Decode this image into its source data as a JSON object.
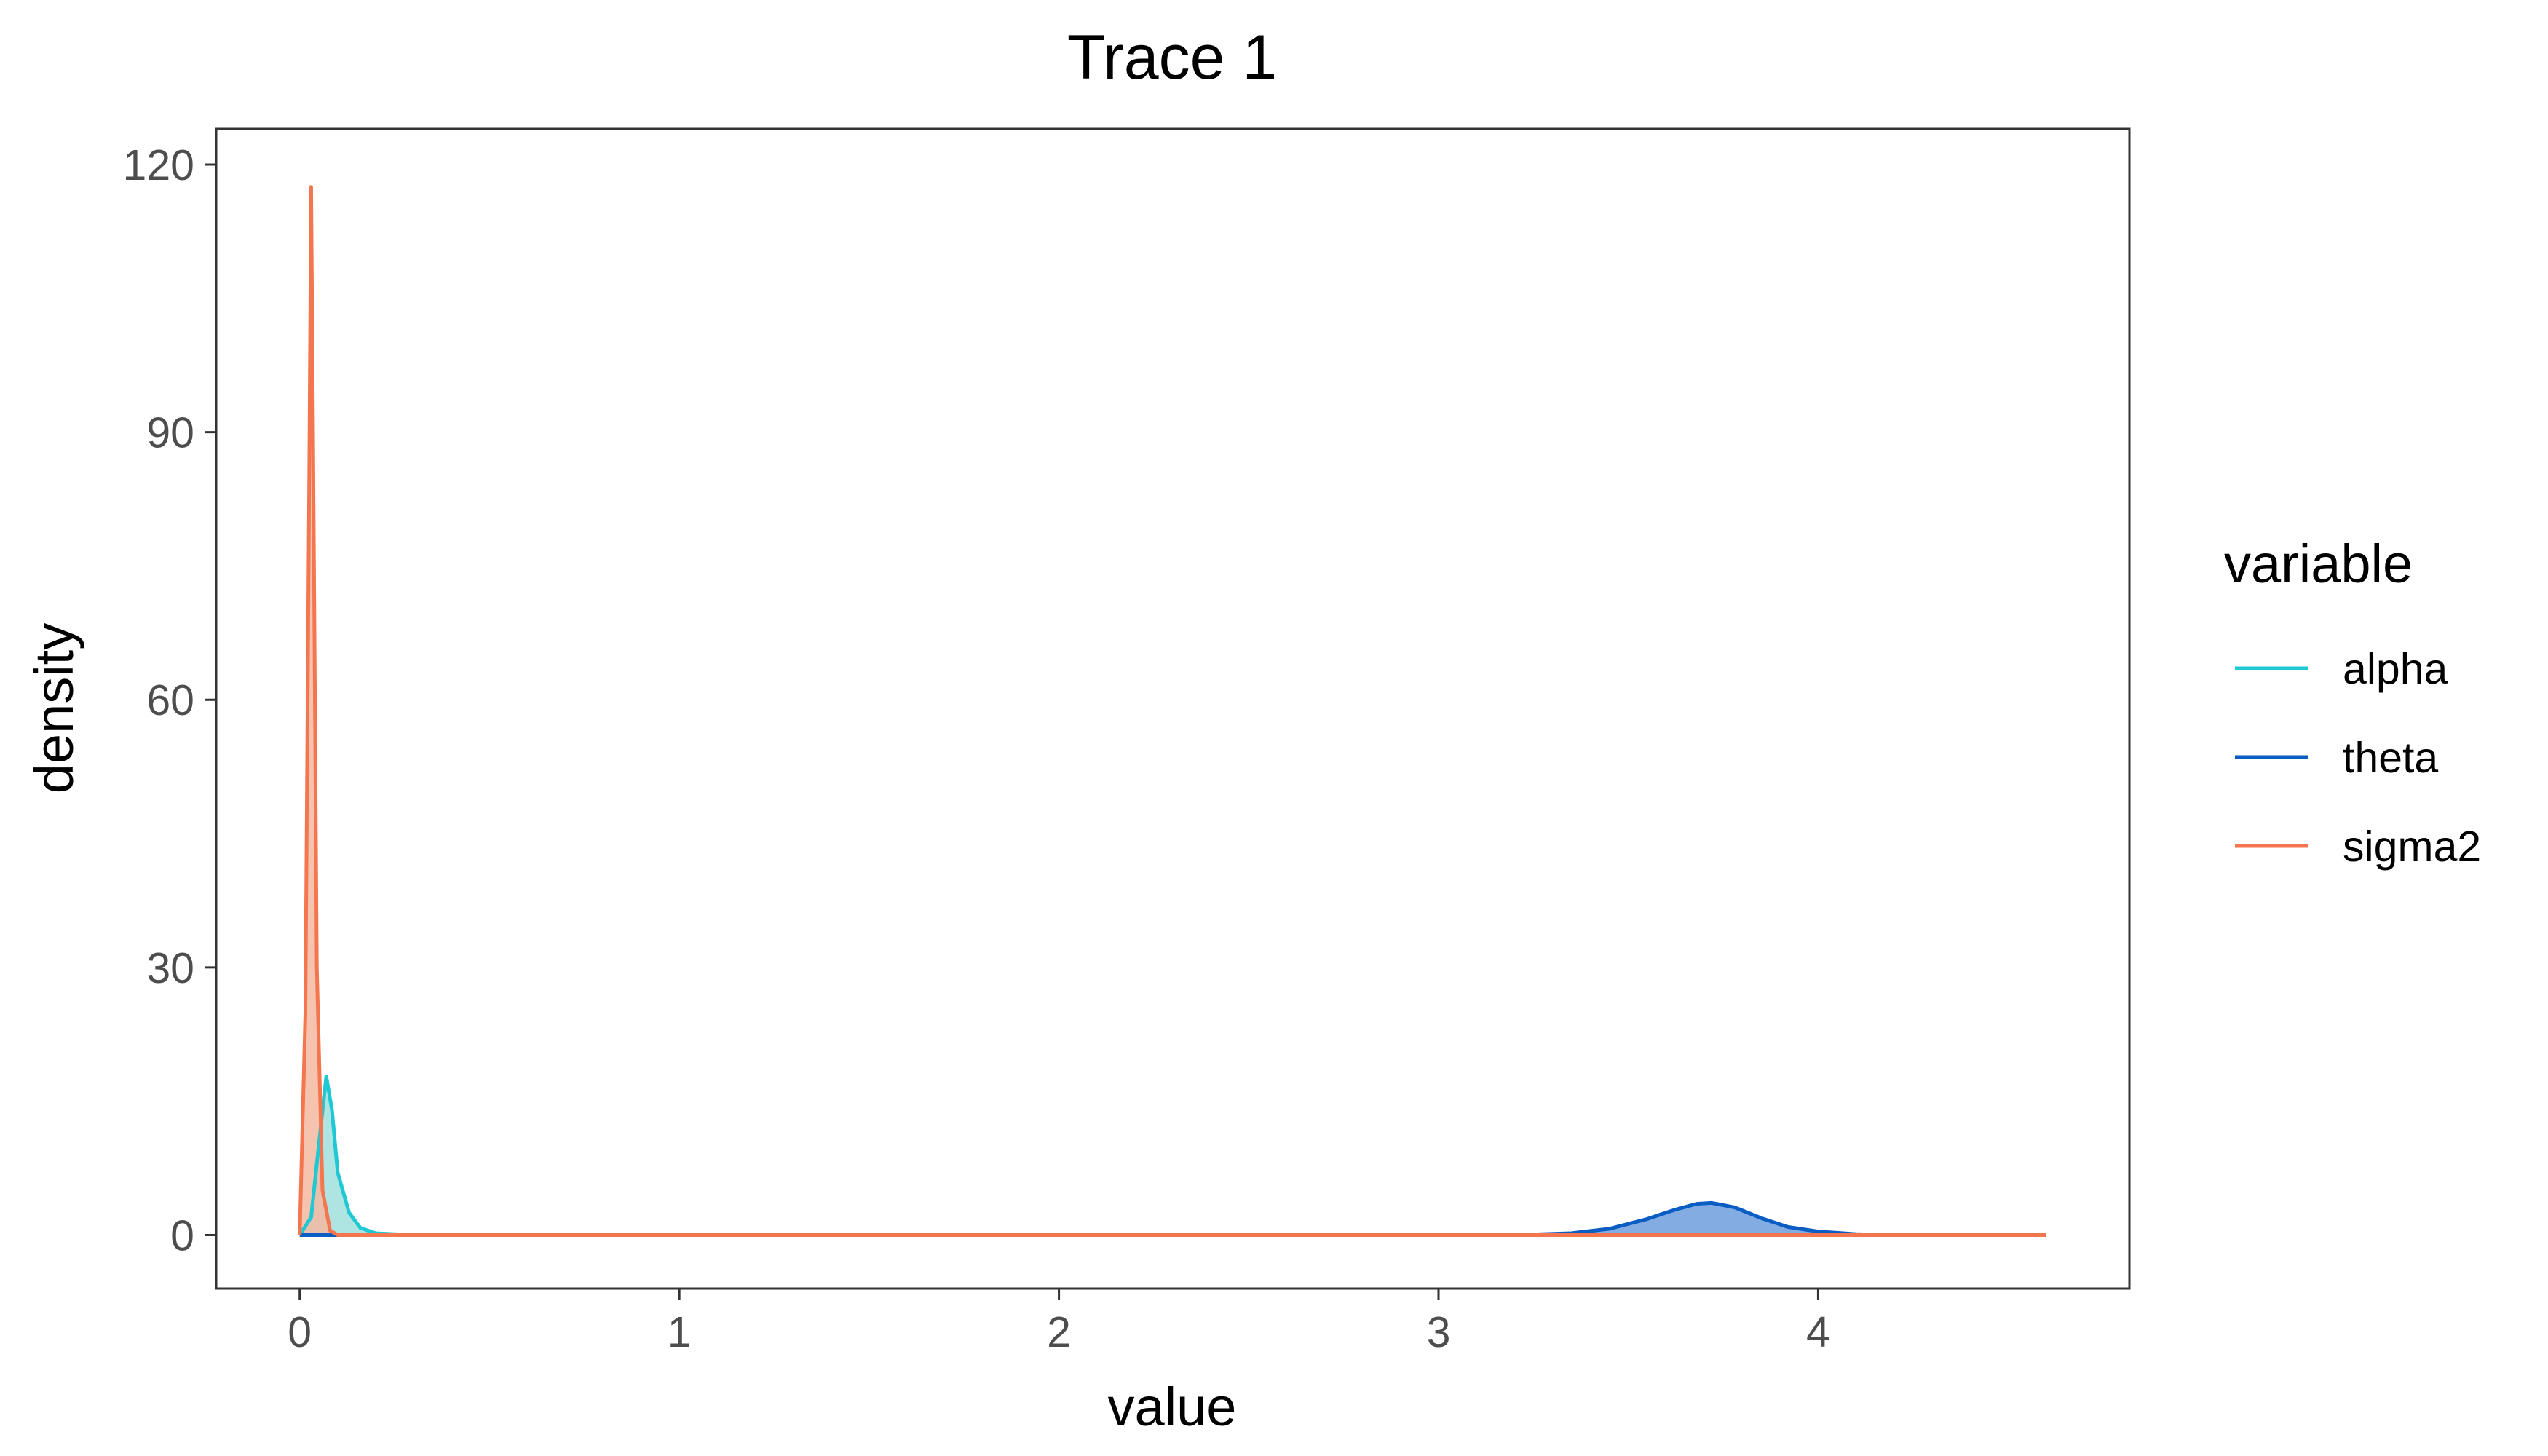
{
  "chart_data": {
    "type": "area",
    "title": "Trace 1",
    "xlabel": "value",
    "ylabel": "density",
    "xlim": [
      -0.22,
      4.82
    ],
    "ylim": [
      -6,
      124
    ],
    "xticks": [
      0,
      1,
      2,
      3,
      4
    ],
    "yticks": [
      0,
      30,
      60,
      90,
      120
    ],
    "grid": false,
    "legend": {
      "title": "variable",
      "position": "right"
    },
    "series": [
      {
        "name": "alpha",
        "color": "#1fc8d2",
        "fill_color": "#a0dfdd",
        "x": [
          0.0,
          0.03,
          0.05,
          0.07,
          0.085,
          0.1,
          0.13,
          0.16,
          0.2,
          0.3,
          4.6
        ],
        "y": [
          0,
          2,
          10,
          17.8,
          14,
          7,
          2.5,
          0.8,
          0.2,
          0,
          0
        ]
      },
      {
        "name": "theta",
        "color": "#0a5dc2",
        "fill_color": "#6d9ede",
        "x": [
          0.0,
          3.2,
          3.35,
          3.45,
          3.55,
          3.62,
          3.68,
          3.72,
          3.78,
          3.85,
          3.92,
          4.0,
          4.1,
          4.2,
          4.6
        ],
        "y": [
          0,
          0,
          0.2,
          0.7,
          1.8,
          2.8,
          3.5,
          3.6,
          3.1,
          1.9,
          0.9,
          0.4,
          0.1,
          0,
          0
        ]
      },
      {
        "name": "sigma2",
        "color": "#f4764f",
        "fill_color": "#f5b8a1",
        "x": [
          0.0,
          0.015,
          0.025,
          0.03,
          0.035,
          0.045,
          0.06,
          0.08,
          0.1,
          4.6
        ],
        "y": [
          0,
          25,
          85,
          117.5,
          90,
          30,
          5,
          0.5,
          0,
          0
        ]
      }
    ]
  }
}
